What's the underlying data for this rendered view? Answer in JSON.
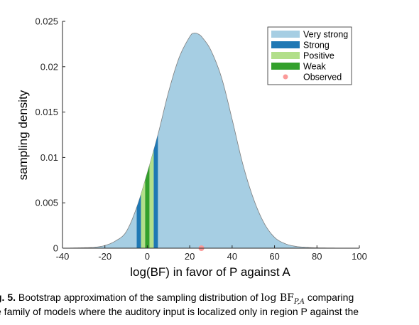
{
  "chart_data": {
    "type": "area",
    "xlabel": "log(BF) in favor of P against A",
    "ylabel": "sampling density",
    "xlim": [
      -40,
      100
    ],
    "ylim": [
      0,
      0.025
    ],
    "xticks": [
      -40,
      -20,
      0,
      20,
      40,
      60,
      80,
      100
    ],
    "xtick_labels": [
      "-40",
      "-20",
      "0",
      "20",
      "40",
      "60",
      "80",
      "100"
    ],
    "yticks": [
      0,
      0.005,
      0.01,
      0.015,
      0.02,
      0.025
    ],
    "ytick_labels": [
      "0",
      "0.005",
      "0.01",
      "0.015",
      "0.02",
      "0.025"
    ],
    "grid": false,
    "legend_position": "top-right",
    "density": {
      "x": [
        -40,
        -35,
        -30,
        -25,
        -20,
        -15,
        -10,
        -5,
        0,
        5,
        10,
        15,
        20,
        22,
        24,
        26,
        30,
        35,
        40,
        45,
        50,
        55,
        60,
        65,
        70,
        75,
        80,
        90,
        100
      ],
      "y": [
        0,
        2e-05,
        5e-05,
        0.0001,
        0.0003,
        0.0008,
        0.0018,
        0.0045,
        0.0083,
        0.0125,
        0.0172,
        0.021,
        0.0233,
        0.0237,
        0.0236,
        0.0232,
        0.0218,
        0.0188,
        0.0142,
        0.0093,
        0.0055,
        0.0028,
        0.0012,
        0.0005,
        0.0002,
        0.0001,
        4e-05,
        1e-05,
        0
      ]
    },
    "series": [
      {
        "name": "Very strong",
        "color": "#a6cee3"
      },
      {
        "name": "Strong",
        "color": "#1f78b4",
        "bands": [
          [
            -5,
            -3
          ],
          [
            3,
            5
          ]
        ]
      },
      {
        "name": "Positive",
        "color": "#b2df8a",
        "bands": [
          [
            -3,
            -1
          ],
          [
            1,
            3
          ]
        ]
      },
      {
        "name": "Weak",
        "color": "#33a02c",
        "bands": [
          [
            -1,
            1
          ]
        ]
      },
      {
        "name": "Observed",
        "color": "#fb9a99",
        "points": [
          [
            25.5,
            0
          ]
        ]
      }
    ]
  },
  "caption": {
    "label": "g. 5.",
    "line1_text": " Bootstrap approximation of the sampling distribution of ",
    "math_main": "log BF",
    "math_sub": "P,A",
    "line1_end": " comparing",
    "line2": "e family of models where the auditory input is localized only in region P against the"
  }
}
